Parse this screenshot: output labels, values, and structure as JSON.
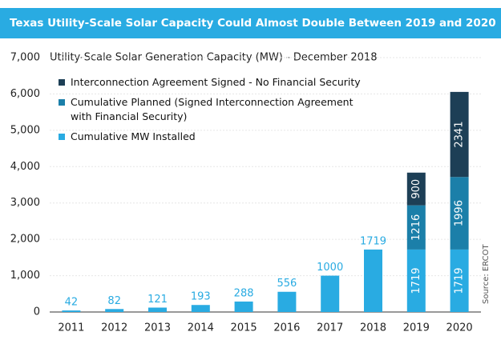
{
  "chart_data": {
    "type": "stacked_bar",
    "title": "Texas Utility-Scale Solar Capacity Could Almost Double Between 2019 and 2020",
    "subtitle": "Utility-Scale Solar Generation Capacity (MW) - December 2018",
    "source": "Source: ERCOT",
    "categories": [
      "2011",
      "2012",
      "2013",
      "2014",
      "2015",
      "2016",
      "2017",
      "2018",
      "2019",
      "2020"
    ],
    "series": [
      {
        "name": "Cumulative MW Installed",
        "color": "#29abe2",
        "values": [
          42,
          82,
          121,
          193,
          288,
          556,
          1000,
          1719,
          1719,
          1719
        ]
      },
      {
        "name": "Cumulative Planned (Signed Interconnection Agreement with Financial Security)",
        "color": "#1b7fa9",
        "values": [
          null,
          null,
          null,
          null,
          null,
          null,
          null,
          null,
          1216,
          1996
        ]
      },
      {
        "name": "Interconnection Agreement Signed - No Financial Security",
        "color": "#1d3f56",
        "values": [
          null,
          null,
          null,
          null,
          null,
          null,
          null,
          null,
          900,
          2341
        ]
      }
    ],
    "ylim": [
      0,
      7000
    ],
    "yticks": [
      0,
      {
        "value": 1000,
        "label": "1,000"
      },
      {
        "value": 2000,
        "label": "2,000"
      },
      {
        "value": 3000,
        "label": "3,000"
      },
      {
        "value": 4000,
        "label": "4,000"
      },
      {
        "value": 5000,
        "label": "5,000"
      },
      {
        "value": 6000,
        "label": "6,000"
      },
      {
        "value": 7000,
        "label": "7,000"
      }
    ],
    "grid": true
  }
}
